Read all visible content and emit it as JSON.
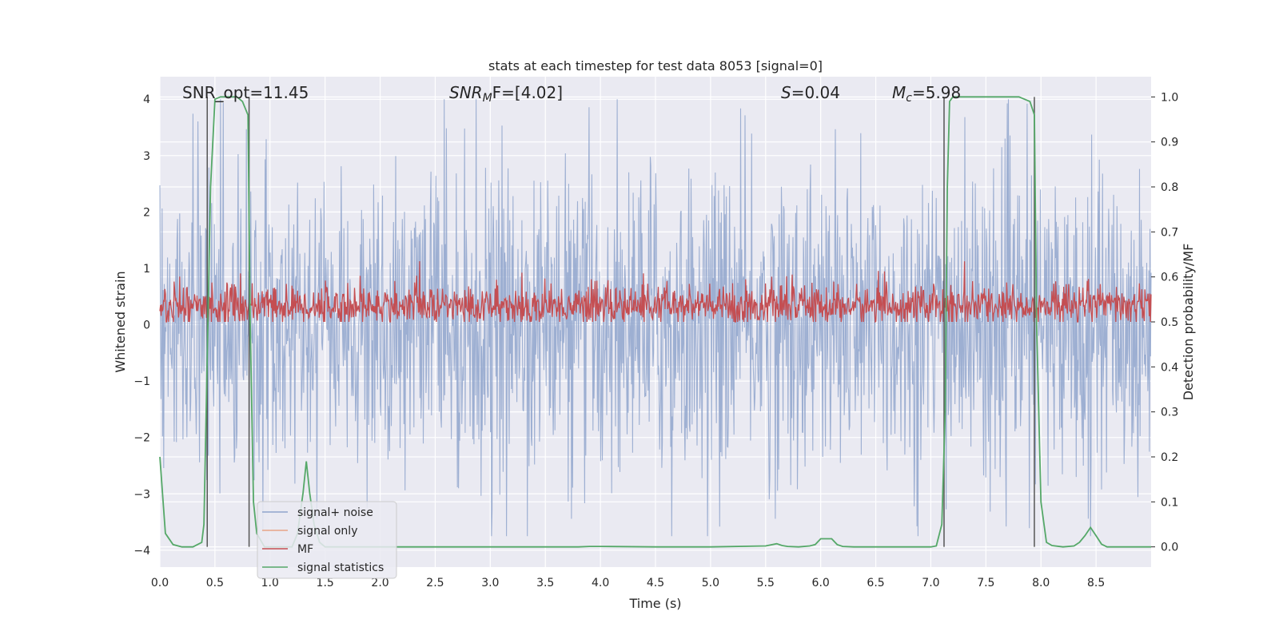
{
  "chart_data": {
    "type": "line",
    "title": "stats at each timestep for test data 8053 [signal=0]",
    "xlabel": "Time (s)",
    "ylabel": "Whitened strain",
    "y2label": "Detection probability/MF",
    "xlim": [
      0.0,
      9.0
    ],
    "ylim": [
      -4.3,
      4.4
    ],
    "y2lim": [
      -0.045,
      1.045
    ],
    "x_ticks": [
      "0.0",
      "0.5",
      "1.0",
      "1.5",
      "2.0",
      "2.5",
      "3.0",
      "3.5",
      "4.0",
      "4.5",
      "5.0",
      "5.5",
      "6.0",
      "6.5",
      "7.0",
      "7.5",
      "8.0",
      "8.5"
    ],
    "y_ticks": [
      "4",
      "3",
      "2",
      "1",
      "0",
      "−1",
      "−2",
      "−3",
      "−4"
    ],
    "y2_ticks": [
      "1.0",
      "0.9",
      "0.8",
      "0.7",
      "0.6",
      "0.5",
      "0.4",
      "0.3",
      "0.2",
      "0.1",
      "0.0"
    ],
    "grid": true,
    "legend_position": "lower-left",
    "annotations": {
      "snr_opt": "SNR_opt=11.45",
      "snr_mf_label": "SNR",
      "snr_mf_sub": "M",
      "snr_mf_rest": "F=[4.02]",
      "s_label": "S",
      "s_rest": "=0.04",
      "mc_label": "M",
      "mc_sub": "c",
      "mc_rest": "=5.98"
    },
    "detection_intervals": [
      [
        0.43,
        0.81
      ],
      [
        7.12,
        7.94
      ]
    ],
    "series": [
      {
        "name": "signal+ noise",
        "color": "#8fa4cc",
        "description": "whitened strain noise, roughly symmetric about 0 with amplitude up to about ±4"
      },
      {
        "name": "signal only",
        "color": "#e8a587",
        "values": []
      },
      {
        "name": "MF",
        "color": "#c44e52",
        "description": "matched-filter output on right axis, oscillating between about 0.5 and 0.62"
      },
      {
        "name": "signal statistics",
        "color": "#55a868",
        "x": [
          0.0,
          0.05,
          0.12,
          0.2,
          0.3,
          0.38,
          0.4,
          0.42,
          0.46,
          0.5,
          0.55,
          0.6,
          0.65,
          0.7,
          0.75,
          0.8,
          0.82,
          0.85,
          0.88,
          0.95,
          1.0,
          1.1,
          1.2,
          1.25,
          1.3,
          1.33,
          1.36,
          1.4,
          1.45,
          1.5,
          1.6,
          2.0,
          3.0,
          3.5,
          3.8,
          3.9,
          4.0,
          4.5,
          5.0,
          5.5,
          5.6,
          5.65,
          5.7,
          5.8,
          5.9,
          5.95,
          6.0,
          6.05,
          6.1,
          6.15,
          6.2,
          6.3,
          6.5,
          7.0,
          7.05,
          7.1,
          7.13,
          7.15,
          7.17,
          7.2,
          7.3,
          7.5,
          7.7,
          7.8,
          7.85,
          7.9,
          7.94,
          7.96,
          8.0,
          8.05,
          8.1,
          8.2,
          8.3,
          8.35,
          8.4,
          8.45,
          8.5,
          8.55,
          8.6,
          8.8,
          9.0
        ],
        "values": [
          0.2,
          0.03,
          0.005,
          0.0,
          0.0,
          0.01,
          0.05,
          0.3,
          0.8,
          0.995,
          1.0,
          1.0,
          1.0,
          1.0,
          0.99,
          0.96,
          0.5,
          0.1,
          0.03,
          0.0,
          0.0,
          0.0,
          0.0,
          0.03,
          0.12,
          0.19,
          0.12,
          0.05,
          0.01,
          0.0,
          0.0,
          0.0,
          0.0,
          0.0,
          0.0,
          0.001,
          0.001,
          0.0,
          0.0,
          0.002,
          0.007,
          0.003,
          0.001,
          0.0,
          0.002,
          0.005,
          0.018,
          0.018,
          0.018,
          0.005,
          0.001,
          0.0,
          0.0,
          0.0,
          0.002,
          0.05,
          0.3,
          0.8,
          0.99,
          1.0,
          1.0,
          1.0,
          1.0,
          1.0,
          0.995,
          0.99,
          0.96,
          0.5,
          0.1,
          0.01,
          0.003,
          0.0,
          0.002,
          0.01,
          0.025,
          0.043,
          0.025,
          0.006,
          0.0,
          0.0,
          0.0
        ]
      }
    ]
  }
}
